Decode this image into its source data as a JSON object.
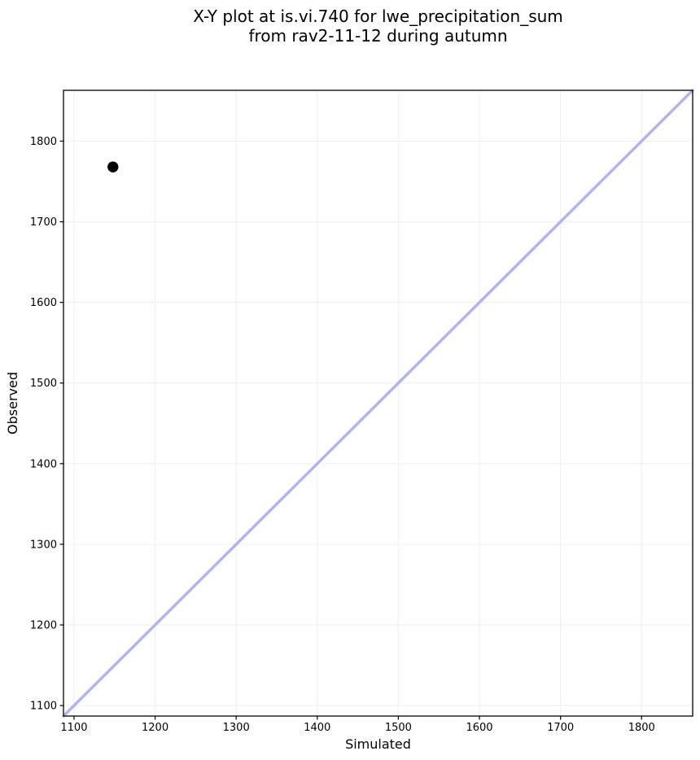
{
  "figure": {
    "background": "#ffffff"
  },
  "chart_data": {
    "type": "scatter",
    "title": "X-Y plot at is.vi.740 for lwe_precipitation_sum\nfrom rav2-11-12 during autumn",
    "title_line1": "X-Y plot at is.vi.740 for lwe_precipitation_sum",
    "title_line2": "from rav2-11-12 during autumn",
    "xlabel": "Simulated",
    "ylabel": "Observed",
    "xlim": [
      1087,
      1863
    ],
    "ylim": [
      1087,
      1863
    ],
    "xticks": [
      1100,
      1200,
      1300,
      1400,
      1500,
      1600,
      1700,
      1800
    ],
    "yticks": [
      1100,
      1200,
      1300,
      1400,
      1500,
      1600,
      1700,
      1800
    ],
    "grid": true,
    "legend": "none",
    "series": [
      {
        "name": "observed-vs-simulated-points",
        "marker": "circle",
        "color": "#000000",
        "points": [
          {
            "x": 1148,
            "y": 1768
          }
        ]
      }
    ],
    "identity_line": {
      "x1": 1087,
      "y1": 1087,
      "x2": 1863,
      "y2": 1863,
      "color": "#b3b3f0",
      "width": 3.5
    },
    "style": {
      "grid_color": "#f0f0f0",
      "spine_color": "#000000",
      "tick_color": "#000000",
      "point_radius": 6.7
    }
  }
}
